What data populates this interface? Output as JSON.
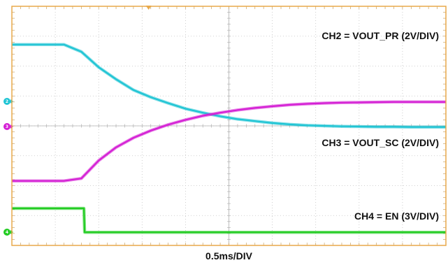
{
  "chart_data": {
    "type": "line",
    "timebase": "0.5ms/DIV",
    "x": [
      0,
      0.2,
      0.4,
      0.6,
      0.8,
      1.0,
      1.2,
      1.4,
      1.6,
      1.8,
      2.0,
      2.2,
      2.4,
      2.6,
      2.8,
      3.0,
      3.2,
      3.4,
      3.6,
      3.8,
      4.0,
      4.2,
      4.4,
      4.6,
      4.8,
      5.0
    ],
    "xlim": [
      0,
      5
    ],
    "series": [
      {
        "name": "CH2 = VOUT_PR (2V/DIV)",
        "channel": "2",
        "color": "#1fc4d4",
        "values": [
          5.4,
          5.4,
          5.4,
          5.4,
          5.1,
          4.45,
          3.95,
          3.5,
          3.2,
          2.95,
          2.72,
          2.55,
          2.4,
          2.28,
          2.2,
          2.12,
          2.06,
          2.02,
          2.0,
          1.98,
          1.97,
          1.96,
          1.96,
          1.95,
          1.95,
          1.95
        ]
      },
      {
        "name": "CH3 = VOUT_SC (2V/DIV)",
        "channel": "3",
        "color": "#d41fd4",
        "values": [
          -0.3,
          -0.3,
          -0.3,
          -0.3,
          -0.2,
          0.55,
          1.1,
          1.5,
          1.8,
          2.05,
          2.25,
          2.42,
          2.55,
          2.66,
          2.75,
          2.82,
          2.88,
          2.92,
          2.95,
          2.97,
          2.98,
          2.99,
          3.0,
          3.0,
          3.0,
          3.0
        ]
      },
      {
        "name": "CH4 = EN (3V/DIV)",
        "channel": "4",
        "color": "#22cc22",
        "values": [
          -1.45,
          -1.45,
          -1.45,
          -1.45,
          -1.45,
          -2.45,
          -2.45,
          -2.45,
          -2.45,
          -2.45,
          -2.45,
          -2.45,
          -2.45,
          -2.45,
          -2.45,
          -2.45,
          -2.45,
          -2.45,
          -2.45,
          -2.45,
          -2.45,
          -2.45,
          -2.45,
          -2.45,
          -2.45,
          -2.45
        ]
      }
    ],
    "ylim": [
      -3.0,
      7.0
    ],
    "grid": true
  },
  "colors": {
    "frame": "#e8a94a",
    "grid": "#c2c2c2",
    "marker_ch2": "#1fc4d4",
    "marker_ch3": "#d41fd4",
    "marker_ch4": "#22cc22",
    "trigger": "#e8a94a"
  }
}
